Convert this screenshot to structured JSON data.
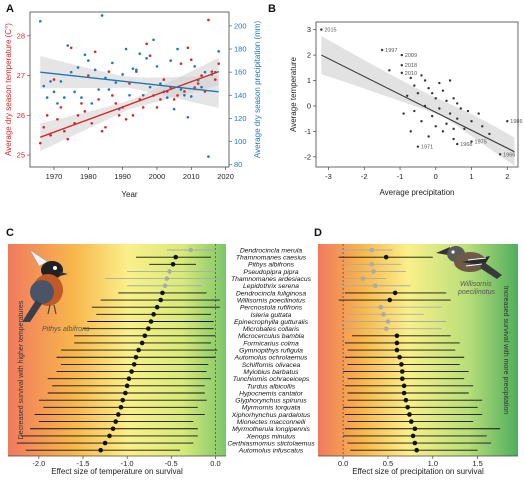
{
  "colors": {
    "temp": "#d62728",
    "precip": "#1f77b4",
    "sig": "#111111",
    "nonsig": "#aaaaaa"
  },
  "chart_data": [
    {
      "panel": "A",
      "type": "scatter",
      "xlabel": "Year",
      "ylabel_left": "Average dry season temperature (C°)",
      "ylabel_right": "Average dry season precipitation (mm)",
      "xlim": [
        1963,
        2021
      ],
      "ylim_left": [
        24.7,
        28.6
      ],
      "ylim_right": [
        78,
        212
      ],
      "xticks": [
        "1970",
        "1980",
        "1990",
        "2000",
        "2010",
        "2020"
      ],
      "yticks_left": [
        "25",
        "26",
        "27",
        "28"
      ],
      "yticks_right": [
        "80",
        "100",
        "120",
        "140",
        "160",
        "180",
        "200"
      ],
      "series": [
        {
          "points": [
            [
              1966,
              25.3
            ],
            [
              1967,
              25.7
            ],
            [
              1968,
              26.0
            ],
            [
              1969,
              25.5
            ],
            [
              1970,
              26.9
            ],
            [
              1971,
              25.9
            ],
            [
              1972,
              26.2
            ],
            [
              1973,
              25.6
            ],
            [
              1974,
              25.4
            ],
            [
              1975,
              27.7
            ],
            [
              1976,
              25.8
            ],
            [
              1977,
              26.0
            ],
            [
              1978,
              26.3
            ],
            [
              1979,
              26.1
            ],
            [
              1980,
              27.0
            ],
            [
              1981,
              25.8
            ],
            [
              1982,
              27.6
            ],
            [
              1983,
              26.4
            ],
            [
              1984,
              25.6
            ],
            [
              1985,
              25.7
            ],
            [
              1986,
              27.1
            ],
            [
              1987,
              26.5
            ],
            [
              1988,
              26.3
            ],
            [
              1989,
              26.0
            ],
            [
              1990,
              26.2
            ],
            [
              1991,
              25.9
            ],
            [
              1992,
              26.8
            ],
            [
              1993,
              26.0
            ],
            [
              1994,
              27.1
            ],
            [
              1995,
              26.4
            ],
            [
              1996,
              26.2
            ],
            [
              1997,
              27.8
            ],
            [
              1998,
              27.5
            ],
            [
              1999,
              26.5
            ],
            [
              2000,
              26.2
            ],
            [
              2001,
              26.4
            ],
            [
              2002,
              26.9
            ],
            [
              2003,
              26.6
            ],
            [
              2004,
              26.7
            ],
            [
              2005,
              26.4
            ],
            [
              2006,
              26.5
            ],
            [
              2007,
              27.3
            ],
            [
              2008,
              26.6
            ],
            [
              2009,
              27.7
            ],
            [
              2010,
              27.4
            ],
            [
              2011,
              26.7
            ],
            [
              2012,
              26.8
            ],
            [
              2013,
              27.0
            ],
            [
              2014,
              26.6
            ],
            [
              2015,
              28.4
            ],
            [
              2016,
              27.1
            ],
            [
              2017,
              26.9
            ],
            [
              2018,
              27.3
            ]
          ],
          "trend": [
            [
              1966,
              25.45
            ],
            [
              2018,
              27.1
            ]
          ]
        },
        {
          "points": [
            [
              1966,
              204
            ],
            [
              1967,
              148
            ],
            [
              1968,
              138
            ],
            [
              1969,
              152
            ],
            [
              1970,
              143
            ],
            [
              1971,
              133
            ],
            [
              1972,
              152
            ],
            [
              1973,
              138
            ],
            [
              1974,
              183
            ],
            [
              1975,
              160
            ],
            [
              1976,
              143
            ],
            [
              1977,
              164
            ],
            [
              1978,
              138
            ],
            [
              1979,
              175
            ],
            [
              1980,
              170
            ],
            [
              1981,
              133
            ],
            [
              1982,
              162
            ],
            [
              1983,
              145
            ],
            [
              1984,
              209
            ],
            [
              1985,
              155
            ],
            [
              1986,
              145
            ],
            [
              1987,
              168
            ],
            [
              1988,
              151
            ],
            [
              1989,
              128
            ],
            [
              1990,
              158
            ],
            [
              1991,
              180
            ],
            [
              1992,
              140
            ],
            [
              1993,
              163
            ],
            [
              1994,
              162
            ],
            [
              1995,
              176
            ],
            [
              1996,
              140
            ],
            [
              1997,
              172
            ],
            [
              1998,
              147
            ],
            [
              1999,
              188
            ],
            [
              2000,
              165
            ],
            [
              2001,
              150
            ],
            [
              2002,
              143
            ],
            [
              2003,
              138
            ],
            [
              2004,
              170
            ],
            [
              2005,
              128
            ],
            [
              2006,
              180
            ],
            [
              2007,
              145
            ],
            [
              2008,
              140
            ],
            [
              2009,
              121
            ],
            [
              2010,
              139
            ],
            [
              2011,
              165
            ],
            [
              2012,
              153
            ],
            [
              2013,
              147
            ],
            [
              2014,
              160
            ],
            [
              2015,
              87
            ],
            [
              2016,
              158
            ],
            [
              2017,
              160
            ],
            [
              2018,
              178
            ]
          ],
          "trend": [
            [
              1966,
              160
            ],
            [
              2018,
              143
            ]
          ]
        }
      ]
    },
    {
      "panel": "B",
      "type": "scatter",
      "xlabel": "Average precipitation",
      "ylabel": "Average temperature",
      "xlim": [
        -3.35,
        2.3
      ],
      "ylim": [
        -2.4,
        3.3
      ],
      "xticks": [
        "-3",
        "-2",
        "-1",
        "0",
        "1",
        "2"
      ],
      "yticks": [
        "-2",
        "-1",
        "0",
        "1",
        "2",
        "3"
      ],
      "trend": [
        [
          -3.2,
          2.0
        ],
        [
          2.2,
          -1.8
        ]
      ],
      "points": [
        [
          -3.2,
          3.0
        ],
        [
          -1.5,
          2.2
        ],
        [
          -0.95,
          2.0
        ],
        [
          -0.95,
          1.6
        ],
        [
          -0.95,
          1.3
        ],
        [
          -1.3,
          1.4
        ],
        [
          -0.7,
          1.1
        ],
        [
          -0.4,
          1.2
        ],
        [
          -0.3,
          1.0
        ],
        [
          -0.6,
          0.8
        ],
        [
          -0.2,
          0.7
        ],
        [
          0.1,
          0.9
        ],
        [
          -0.5,
          0.5
        ],
        [
          0.2,
          0.6
        ],
        [
          -0.8,
          0.4
        ],
        [
          0.0,
          0.3
        ],
        [
          0.3,
          0.2
        ],
        [
          -0.3,
          0.0
        ],
        [
          0.5,
          0.3
        ],
        [
          0.1,
          -0.1
        ],
        [
          -0.6,
          -0.2
        ],
        [
          0.4,
          -0.3
        ],
        [
          0.7,
          -0.1
        ],
        [
          -0.1,
          -0.4
        ],
        [
          0.6,
          -0.5
        ],
        [
          0.9,
          -0.2
        ],
        [
          0.3,
          -0.7
        ],
        [
          -0.4,
          -0.6
        ],
        [
          1.0,
          -0.6
        ],
        [
          0.2,
          -1.0
        ],
        [
          0.8,
          -0.9
        ],
        [
          1.3,
          -0.8
        ],
        [
          -0.2,
          -1.2
        ],
        [
          0.5,
          -1.3
        ],
        [
          0.6,
          -1.5
        ],
        [
          1.0,
          -1.4
        ],
        [
          -0.5,
          -1.6
        ],
        [
          1.5,
          -1.1
        ],
        [
          2.0,
          -0.6
        ],
        [
          1.2,
          -0.3
        ],
        [
          -0.9,
          -0.3
        ],
        [
          -0.1,
          0.5
        ],
        [
          0.4,
          1.0
        ],
        [
          0.5,
          -0.9
        ],
        [
          1.8,
          -1.9
        ],
        [
          0.0,
          -0.8
        ],
        [
          -0.7,
          -1.0
        ],
        [
          0.6,
          0.1
        ]
      ],
      "annotations": [
        {
          "text": "2015",
          "x": -3.2,
          "y": 3.0
        },
        {
          "text": "1997",
          "x": -1.5,
          "y": 2.2
        },
        {
          "text": "2009",
          "x": -0.95,
          "y": 2.0
        },
        {
          "text": "2018",
          "x": -0.95,
          "y": 1.6
        },
        {
          "text": "2010",
          "x": -0.95,
          "y": 1.3
        },
        {
          "text": "1971",
          "x": -0.5,
          "y": -1.6
        },
        {
          "text": "1968",
          "x": 0.6,
          "y": -1.5
        },
        {
          "text": "1975",
          "x": 1.0,
          "y": -1.4
        },
        {
          "text": "1986",
          "x": 2.0,
          "y": -0.6
        },
        {
          "text": "1966",
          "x": 1.8,
          "y": -1.9
        }
      ]
    },
    {
      "panel": "C",
      "type": "forest",
      "xlabel": "Effect size of temperature on survival",
      "xlim": [
        -2.35,
        0.12
      ],
      "xticks": [
        "-2.0",
        "-1.5",
        "-1.0",
        "-0.5",
        "0.0"
      ],
      "side_label": "Decreased survival with higher temperatures",
      "bird_label": "Pithys albifrons",
      "species": [
        "Dendrocincla merula",
        "Thamnomanes caesius",
        "Pithys albifrons",
        "Pseudopipra pipra",
        "Thamnomanes ardesiacus",
        "Lepidothrix serena",
        "Dendrocincla fuliginosa",
        "Willisornis poecilinotus",
        "Percnostola rufifrons",
        "Isleria guttata",
        "Epinecrophylla gutturalis",
        "Microbates collaris",
        "Microcerculus bambla",
        "Formicarius colma",
        "Gymnopithys rufigula",
        "Automolus ochrolaemus",
        "Schiffornis olivacea",
        "Myiobius barbatus",
        "Tunchiornis ochraceiceps",
        "Turdus albicollis",
        "Hypocnemis cantator",
        "Glyphorynchus spirurus",
        "Myrmornis torquata",
        "Xiphorhynchus pardalotus",
        "Mionectes macconnelli",
        "Myrmotherula longipennis",
        "Xenops minutus",
        "Certhiasmomus stictolaemus",
        "Automolus infuscatus"
      ],
      "estimates": [
        -0.28,
        -0.45,
        -0.48,
        -0.52,
        -0.55,
        -0.57,
        -0.6,
        -0.62,
        -0.66,
        -0.7,
        -0.73,
        -0.76,
        -0.8,
        -0.83,
        -0.87,
        -0.9,
        -0.92,
        -0.95,
        -0.98,
        -1.0,
        -1.02,
        -1.05,
        -1.07,
        -1.1,
        -1.13,
        -1.16,
        -1.2,
        -1.25,
        -1.3
      ],
      "lower": [
        -0.55,
        -0.9,
        -0.75,
        -1.0,
        -1.25,
        -1.0,
        -1.1,
        -1.3,
        -1.4,
        -1.35,
        -1.45,
        -1.5,
        -1.6,
        -1.6,
        -1.75,
        -1.8,
        -1.75,
        -1.8,
        -1.9,
        -1.85,
        -1.9,
        -2.0,
        -1.95,
        -2.05,
        -2.0,
        -2.1,
        -2.2,
        -2.25,
        -2.15
      ],
      "upper": [
        0.0,
        -0.05,
        -0.22,
        0.0,
        0.1,
        -0.15,
        -0.1,
        0.05,
        0.05,
        -0.05,
        -0.02,
        -0.02,
        0.0,
        -0.05,
        0.02,
        0.0,
        -0.08,
        -0.1,
        -0.05,
        -0.12,
        -0.12,
        -0.1,
        -0.2,
        -0.12,
        -0.25,
        -0.2,
        -0.2,
        -0.25,
        -0.4
      ],
      "significant": [
        false,
        true,
        true,
        false,
        false,
        false,
        true,
        true,
        true,
        true,
        true,
        true,
        true,
        true,
        true,
        true,
        true,
        true,
        true,
        true,
        true,
        true,
        true,
        true,
        true,
        true,
        true,
        true,
        true
      ]
    },
    {
      "panel": "D",
      "type": "forest",
      "xlabel": "Effect size of precipitation on survival",
      "xlim": [
        -0.28,
        1.95
      ],
      "xticks": [
        "0.0",
        "0.5",
        "1.0",
        "1.5"
      ],
      "side_label": "Increased survival with more precipitation",
      "bird_label": "Willisornis poecilinotus",
      "estimates": [
        0.32,
        0.48,
        0.32,
        0.34,
        0.22,
        0.36,
        0.58,
        0.52,
        0.42,
        0.45,
        0.5,
        0.48,
        0.6,
        0.6,
        0.6,
        0.63,
        0.65,
        0.66,
        0.66,
        0.68,
        0.68,
        0.7,
        0.72,
        0.74,
        0.76,
        0.8,
        0.78,
        0.8,
        0.82
      ],
      "lower": [
        -0.05,
        -0.05,
        0.0,
        0.05,
        0.0,
        -0.05,
        0.02,
        -0.05,
        0.08,
        0.05,
        0.0,
        0.02,
        0.1,
        0.02,
        0.05,
        0.02,
        0.05,
        0.0,
        0.05,
        0.02,
        0.05,
        0.05,
        0.0,
        0.02,
        0.05,
        0.02,
        0.0,
        0.05,
        0.08
      ],
      "upper": [
        0.55,
        1.0,
        0.65,
        0.7,
        0.48,
        0.75,
        1.15,
        1.2,
        1.1,
        0.9,
        1.15,
        1.1,
        1.2,
        1.3,
        1.25,
        1.35,
        1.3,
        1.4,
        1.35,
        1.45,
        1.4,
        1.55,
        1.5,
        1.55,
        1.45,
        1.75,
        1.6,
        1.65,
        1.5
      ],
      "significant": [
        false,
        true,
        false,
        false,
        false,
        false,
        true,
        true,
        false,
        false,
        false,
        false,
        true,
        true,
        true,
        true,
        true,
        true,
        true,
        true,
        true,
        true,
        true,
        true,
        true,
        true,
        true,
        true,
        true
      ]
    }
  ]
}
